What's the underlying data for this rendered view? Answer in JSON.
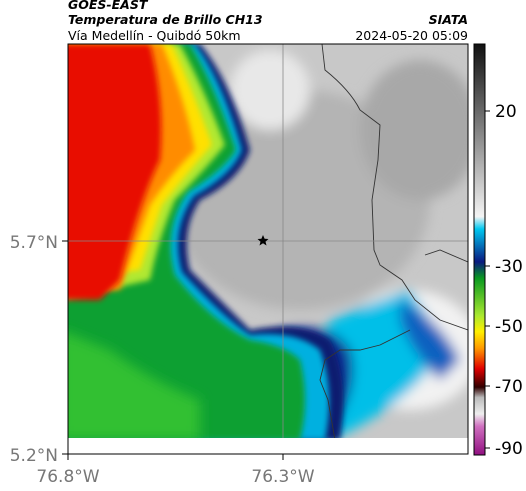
{
  "header": {
    "title": "GOES-EAST",
    "subtitle": "Temperatura de Brillo CH13",
    "location": "Vía Medellín - Quibdó 50km",
    "source": "SIATA",
    "datetime": "2024-05-20 05:09"
  },
  "axes": {
    "y_labels": [
      "5.7°N",
      "5.2°N"
    ],
    "x_labels": [
      "76.8°W",
      "76.3°W"
    ]
  },
  "colorbar": {
    "labels": [
      "20",
      "-30",
      "-50",
      "-70",
      "-90"
    ]
  }
}
